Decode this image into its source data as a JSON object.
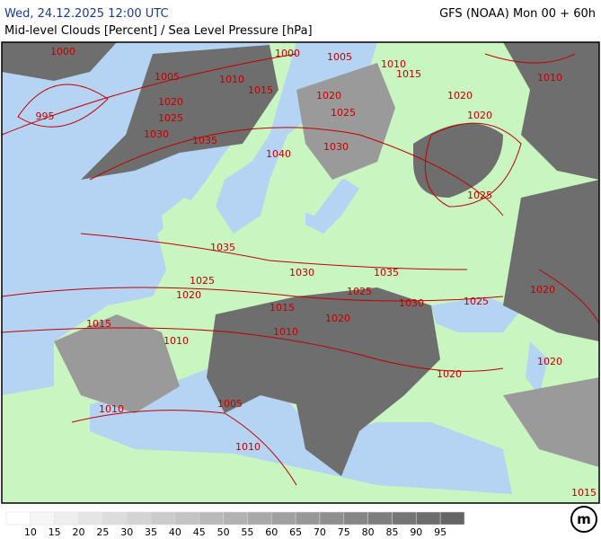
{
  "header": {
    "datetime": "Wed, 24.12.2025 12:00 UTC",
    "model": "GFS (NOAA) Mon 00 + 60h",
    "title": "Mid-level Clouds [Percent] / Sea Level Pressure [hPa]"
  },
  "isobar_labels": [
    "1000",
    "1000",
    "1005",
    "1010",
    "1015",
    "1005",
    "1010",
    "1015",
    "1020",
    "1020",
    "1020",
    "1010",
    "995",
    "1025",
    "1025",
    "1020",
    "1030",
    "1035",
    "1030",
    "1040",
    "1025",
    "1035",
    "1030",
    "1035",
    "1025",
    "1025",
    "1020",
    "1030",
    "1025",
    "1020",
    "1015",
    "1020",
    "1015",
    "1010",
    "1010",
    "1020",
    "1020",
    "1010",
    "1005",
    "1010",
    "1015"
  ],
  "legend": {
    "labels": [
      "10",
      "15",
      "20",
      "25",
      "30",
      "35",
      "40",
      "45",
      "50",
      "55",
      "60",
      "65",
      "70",
      "75",
      "80",
      "85",
      "90",
      "95"
    ]
  }
}
